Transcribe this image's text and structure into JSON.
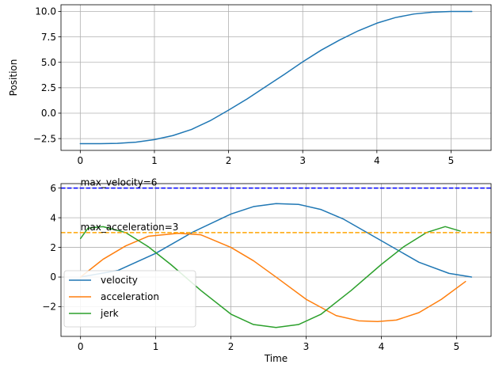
{
  "chart_data": [
    {
      "type": "line",
      "xlabel": "",
      "ylabel": "Position",
      "xlim": [
        -0.26,
        5.54
      ],
      "ylim": [
        -3.66,
        10.66
      ],
      "xticks": [
        "0",
        "1",
        "2",
        "3",
        "4",
        "5"
      ],
      "yticks": [
        "−2.5",
        "0.0",
        "2.5",
        "5.0",
        "7.5",
        "10.0"
      ],
      "grid": true,
      "series": [
        {
          "color": "#1f77b4",
          "x": [
            0,
            0.25,
            0.5,
            0.75,
            1,
            1.25,
            1.5,
            1.75,
            2,
            2.25,
            2.5,
            2.75,
            3,
            3.25,
            3.5,
            3.75,
            4,
            4.25,
            4.5,
            4.75,
            5,
            5.28
          ],
          "y": [
            -3.0,
            -3.0,
            -2.97,
            -2.85,
            -2.6,
            -2.2,
            -1.6,
            -0.75,
            0.3,
            1.4,
            2.6,
            3.8,
            5.05,
            6.2,
            7.2,
            8.1,
            8.85,
            9.4,
            9.75,
            9.93,
            10.0,
            10.0
          ]
        }
      ]
    },
    {
      "type": "line",
      "xlabel": "Time",
      "ylabel": "",
      "xlim": [
        -0.26,
        5.46
      ],
      "ylim": [
        -4.0,
        6.3
      ],
      "xticks": [
        "0",
        "1",
        "2",
        "3",
        "4",
        "5"
      ],
      "yticks": [
        "−2",
        "0",
        "2",
        "4",
        "6"
      ],
      "grid": true,
      "legend_position": "lower-left",
      "series": [
        {
          "name": "velocity",
          "color": "#1f77b4",
          "x": [
            0,
            0.5,
            1,
            1.5,
            2,
            2.3,
            2.6,
            2.9,
            3.2,
            3.5,
            4,
            4.5,
            4.9,
            5.2
          ],
          "y": [
            0.0,
            0.45,
            1.6,
            3.05,
            4.25,
            4.75,
            4.95,
            4.9,
            4.55,
            3.9,
            2.45,
            1.0,
            0.25,
            0.0
          ]
        },
        {
          "name": "acceleration",
          "color": "#ff7f0e",
          "x": [
            0,
            0.3,
            0.6,
            0.9,
            1.3,
            1.6,
            2,
            2.3,
            2.6,
            3,
            3.4,
            3.7,
            3.95,
            4.2,
            4.5,
            4.8,
            5.12
          ],
          "y": [
            0.0,
            1.2,
            2.1,
            2.75,
            2.95,
            2.85,
            2.0,
            1.1,
            0.0,
            -1.5,
            -2.6,
            -2.95,
            -3.0,
            -2.9,
            -2.4,
            -1.5,
            -0.3
          ]
        },
        {
          "name": "jerk",
          "color": "#2ca02c",
          "x": [
            0,
            0.1,
            0.3,
            0.6,
            0.9,
            1.2,
            1.6,
            2,
            2.3,
            2.6,
            2.9,
            3.2,
            3.6,
            4,
            4.3,
            4.6,
            4.85,
            5.05
          ],
          "y": [
            2.6,
            3.3,
            3.4,
            3.0,
            2.05,
            0.85,
            -0.9,
            -2.5,
            -3.2,
            -3.4,
            -3.2,
            -2.5,
            -0.9,
            0.85,
            2.05,
            3.0,
            3.4,
            3.1
          ]
        }
      ],
      "hlines": [
        {
          "y": 6,
          "color": "#0000ff",
          "label": "max_velocity=6"
        },
        {
          "y": 3,
          "color": "#ffa500",
          "label": "max_acceleration=3"
        }
      ]
    }
  ]
}
